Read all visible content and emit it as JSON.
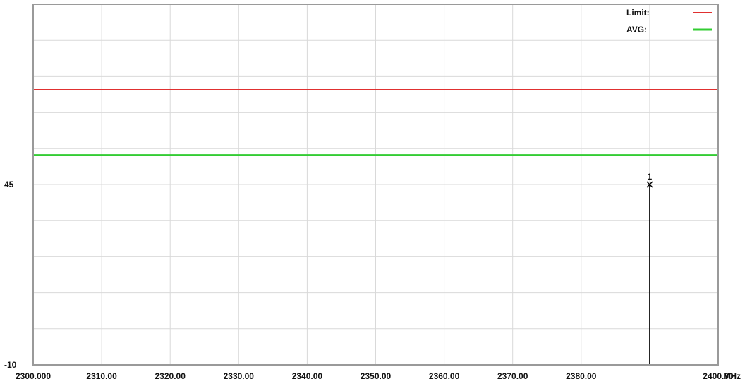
{
  "chart_data": {
    "type": "line",
    "x_unit": "MHz",
    "xlim": [
      2300,
      2400
    ],
    "ylim": [
      -10,
      100
    ],
    "x_ticks": [
      {
        "value": 2300,
        "label": "2300.000"
      },
      {
        "value": 2310,
        "label": "2310.00"
      },
      {
        "value": 2320,
        "label": "2320.00"
      },
      {
        "value": 2330,
        "label": "2330.00"
      },
      {
        "value": 2340,
        "label": "2340.00"
      },
      {
        "value": 2350,
        "label": "2350.00"
      },
      {
        "value": 2360,
        "label": "2360.00"
      },
      {
        "value": 2370,
        "label": "2370.00"
      },
      {
        "value": 2380,
        "label": "2380.00"
      },
      {
        "value": 2400,
        "label": "2400.00"
      }
    ],
    "y_ticks": [
      {
        "value": 45,
        "label": "45"
      },
      {
        "value": -10,
        "label": "-10"
      }
    ],
    "grid": true,
    "legend_position": "top-right",
    "series": [
      {
        "name": "Limit:",
        "color": "#e03030",
        "x": [
          2300,
          2400
        ],
        "y": [
          74,
          74
        ]
      },
      {
        "name": "AVG:",
        "color": "#33cc33",
        "x": [
          2300,
          2400
        ],
        "y": [
          54,
          54
        ]
      }
    ],
    "markers": [
      {
        "label": "1",
        "x": 2390,
        "y": 45
      }
    ],
    "trace": {
      "color": "#000000",
      "x": [
        2390,
        2390
      ],
      "y": [
        -10,
        45
      ]
    }
  }
}
